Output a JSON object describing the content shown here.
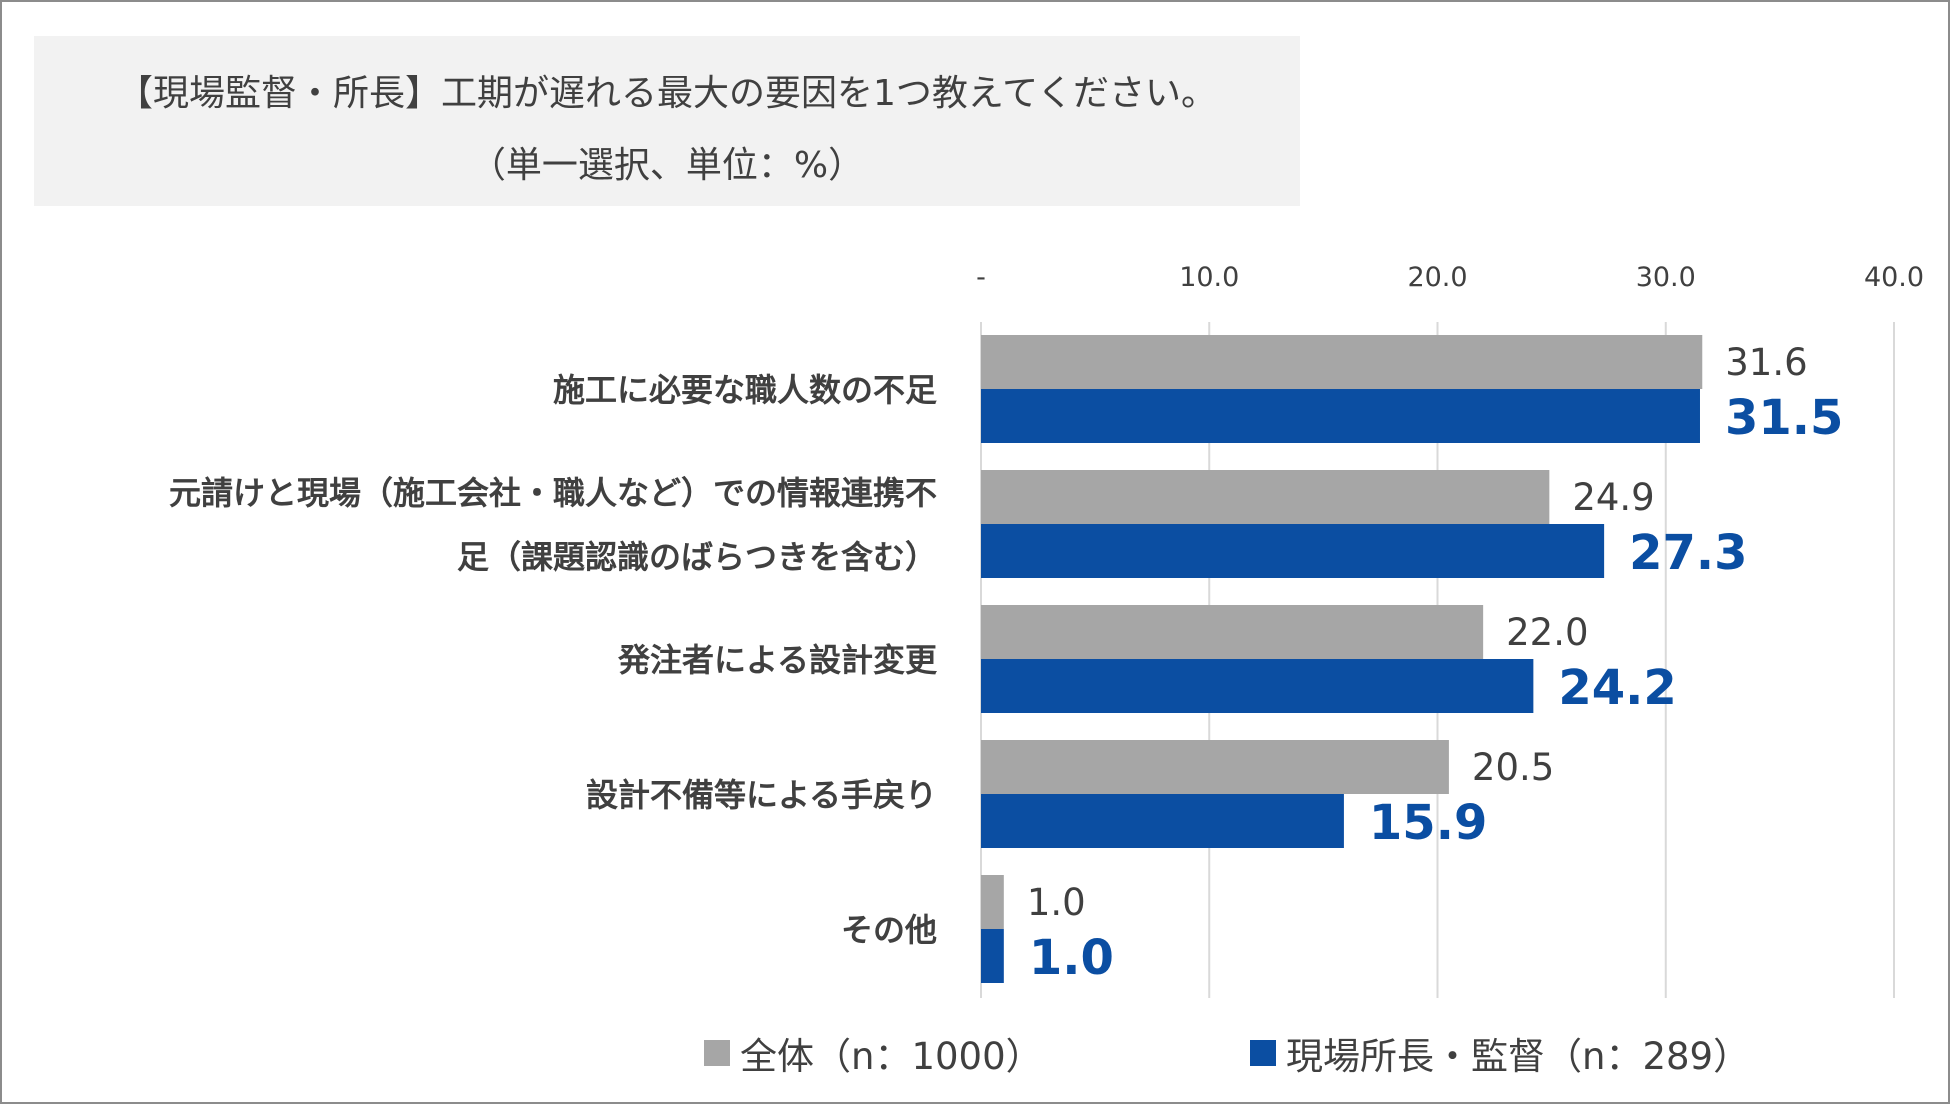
{
  "colors": {
    "series_a": "#a6a6a6",
    "series_b": "#0b4ea2",
    "grid": "#d9d9d9",
    "text": "#404040"
  },
  "chart_data": {
    "type": "bar",
    "orientation": "horizontal",
    "title_line1": "【現場監督・所長】工期が遅れる最大の要因を1つ教えてください。",
    "title_line2": "（単一選択、単位：%）",
    "categories": [
      [
        "施工に必要な職人数の不足"
      ],
      [
        "元請けと現場（施工会社・職人など）での情報連携不",
        "足（課題認識のばらつきを含む）"
      ],
      [
        "発注者による設計変更"
      ],
      [
        "設計不備等による手戻り"
      ],
      [
        "その他"
      ]
    ],
    "series": [
      {
        "name": "全体（n：1000）",
        "values": [
          31.6,
          24.9,
          22.0,
          20.5,
          1.0
        ]
      },
      {
        "name": "現場所長・監督（n：289）",
        "values": [
          31.5,
          27.3,
          24.2,
          15.9,
          1.0
        ]
      }
    ],
    "xlim": [
      0,
      40
    ],
    "ticks": [
      0,
      10,
      20,
      30,
      40
    ],
    "tick_labels": [
      "-",
      "10.0",
      "20.0",
      "30.0",
      "40.0"
    ],
    "grid": true,
    "legend_position": "bottom"
  }
}
